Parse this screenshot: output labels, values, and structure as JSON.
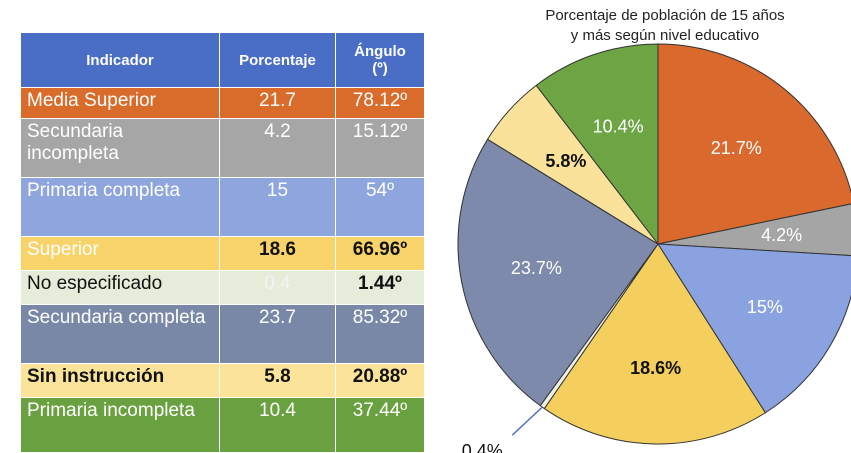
{
  "table": {
    "header": [
      "Indicador",
      "Porcentaje",
      "Ángulo",
      "(º)"
    ],
    "rows": [
      [
        "Media Superior",
        "21.7",
        "78.12º"
      ],
      [
        "Secundaria incompleta",
        "4.2",
        "15.12º"
      ],
      [
        "Primaria completa",
        "15",
        "54º"
      ],
      [
        "Superior",
        "18.6",
        "66.96º"
      ],
      [
        "No especificado",
        "0.4",
        "1.44º"
      ],
      [
        "Secundaria completa",
        "23.7",
        "85.32º"
      ],
      [
        "Sin instrucción",
        "5.8",
        "20.88º"
      ],
      [
        "Primaria incompleta",
        "10.4",
        "37.44º"
      ]
    ]
  },
  "chart_data": {
    "type": "pie",
    "title": [
      "Porcentaje de población de 15 años",
      "y más según nivel educativo"
    ],
    "values": [
      21.7,
      4.2,
      15,
      18.6,
      0.4,
      23.7,
      5.8,
      10.4
    ],
    "value_labels": [
      "21.7%",
      "4.2%",
      "15%",
      "18.6%",
      "0.4%",
      "23.7%",
      "5.8%",
      "10.4%"
    ],
    "colors": [
      "#d9692c",
      "#a5a5a5",
      "#8aa3e0",
      "#f5cf5e",
      "#eef2e6",
      "#7d8aab",
      "#fbe29b",
      "#6ea544"
    ],
    "label_colors": [
      "#ffffff",
      "#ffffff",
      "#ffffff",
      "#111111",
      "#111111",
      "#ffffff",
      "#111111",
      "#ffffff"
    ]
  }
}
